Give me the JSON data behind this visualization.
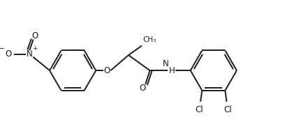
{
  "bg_color": "#ffffff",
  "line_color": "#1a1a1a",
  "text_color": "#1a1a1a",
  "figsize": [
    4.38,
    1.98
  ],
  "dpi": 100,
  "bond_lw": 1.4,
  "font_size": 8.5,
  "xlim": [
    0,
    10
  ],
  "ylim": [
    0,
    4.5
  ]
}
